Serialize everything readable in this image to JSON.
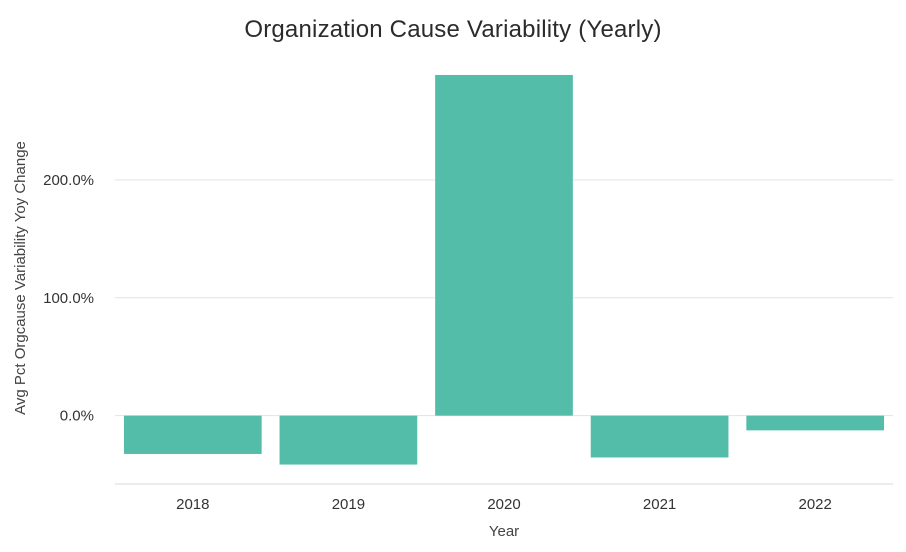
{
  "chart_data": {
    "type": "bar",
    "title": "Organization Cause Variability (Yearly)",
    "xlabel": "Year",
    "ylabel": "Avg Pct Orgcause Variability Yoy Change",
    "categories": [
      "2018",
      "2019",
      "2020",
      "2021",
      "2022"
    ],
    "values": [
      -32.5,
      -41.5,
      289.0,
      -35.5,
      -12.5
    ],
    "yticks": [
      0,
      100,
      200
    ],
    "ytick_labels": [
      "0.0%",
      "100.0%",
      "200.0%"
    ],
    "ylim": [
      -58,
      300
    ],
    "grid": true,
    "bar_color": "#53bda9"
  }
}
